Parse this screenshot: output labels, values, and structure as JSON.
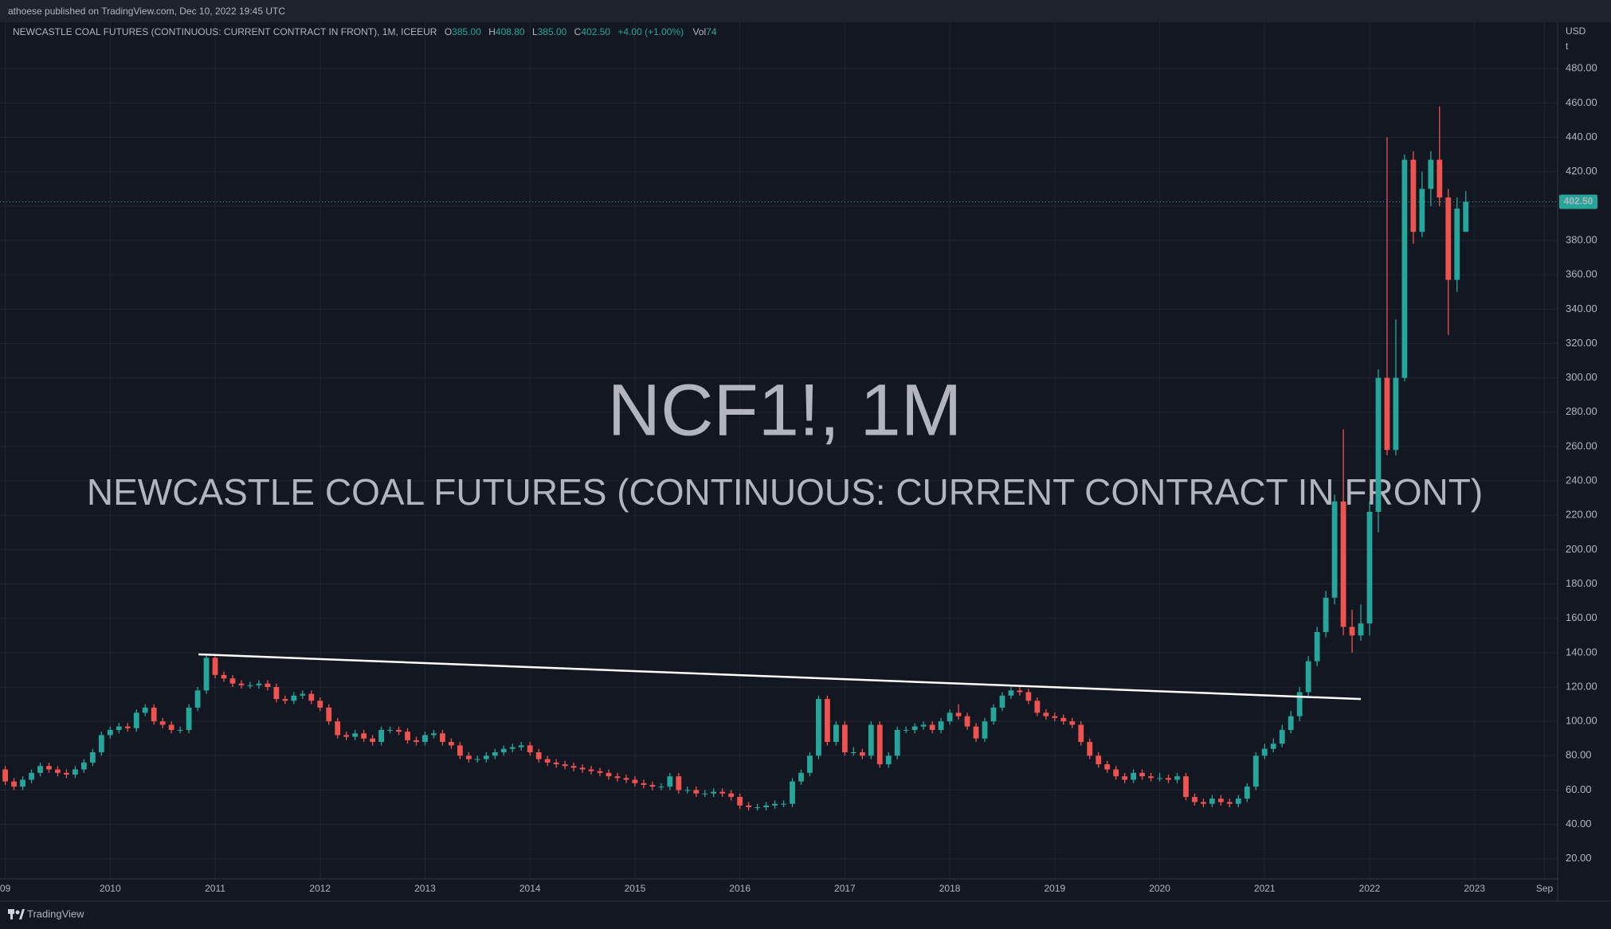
{
  "published": "athoese published on TradingView.com, Dec 10, 2022 19:45 UTC",
  "footer": "TradingView",
  "legend": {
    "title": "NEWCASTLE COAL FUTURES (CONTINUOUS: CURRENT CONTRACT IN FRONT), 1M, ICEEUR",
    "items": [
      {
        "key": "O",
        "text": "385.00"
      },
      {
        "key": "H",
        "text": "408.80"
      },
      {
        "key": "L",
        "text": "385.00"
      },
      {
        "key": "C",
        "text": "402.50"
      }
    ],
    "change": "+4.00 (+1.00%)",
    "volume_key": "Vol",
    "volume": "74"
  },
  "chart_data": {
    "type": "candlestick",
    "watermark": "NCF1!, 1M",
    "watermark_subtitle": "NEWCASTLE COAL FUTURES (CONTINUOUS: CURRENT CONTRACT IN FRONT)",
    "currency": "USD",
    "unit": "t",
    "last_price_label": "402.50",
    "up_color": "#26a69a",
    "down_color": "#ef5350",
    "grid": true,
    "xlim": [
      -0.6,
      177.5
    ],
    "xticks": [
      {
        "value": 0,
        "label": "09"
      },
      {
        "value": 12,
        "label": "2010"
      },
      {
        "value": 24,
        "label": "2011"
      },
      {
        "value": 36,
        "label": "2012"
      },
      {
        "value": 48,
        "label": "2013"
      },
      {
        "value": 60,
        "label": "2014"
      },
      {
        "value": 72,
        "label": "2015"
      },
      {
        "value": 84,
        "label": "2016"
      },
      {
        "value": 96,
        "label": "2017"
      },
      {
        "value": 108,
        "label": "2018"
      },
      {
        "value": 120,
        "label": "2019"
      },
      {
        "value": 132,
        "label": "2020"
      },
      {
        "value": 144,
        "label": "2021"
      },
      {
        "value": 156,
        "label": "2022"
      },
      {
        "value": 168,
        "label": "2023"
      },
      {
        "value": 176,
        "label": "Sep"
      }
    ],
    "ylim": [
      8.3,
      507
    ],
    "yticks": [
      {
        "value": 20,
        "label": "20.00"
      },
      {
        "value": 40,
        "label": "40.00"
      },
      {
        "value": 60,
        "label": "60.00"
      },
      {
        "value": 80,
        "label": "80.00"
      },
      {
        "value": 100,
        "label": "100.00"
      },
      {
        "value": 120,
        "label": "120.00"
      },
      {
        "value": 140,
        "label": "140.00"
      },
      {
        "value": 160,
        "label": "160.00"
      },
      {
        "value": 180,
        "label": "180.00"
      },
      {
        "value": 200,
        "label": "200.00"
      },
      {
        "value": 220,
        "label": "220.00"
      },
      {
        "value": 240,
        "label": "240.00"
      },
      {
        "value": 260,
        "label": "260.00"
      },
      {
        "value": 280,
        "label": "280.00"
      },
      {
        "value": 300,
        "label": "300.00"
      },
      {
        "value": 320,
        "label": "320.00"
      },
      {
        "value": 340,
        "label": "340.00"
      },
      {
        "value": 360,
        "label": "360.00"
      },
      {
        "value": 380,
        "label": "380.00"
      },
      {
        "value": 400,
        "label": "400.00"
      },
      {
        "value": 420,
        "label": "420.00"
      },
      {
        "value": 440,
        "label": "440.00"
      },
      {
        "value": 460,
        "label": "460.00"
      },
      {
        "value": 480,
        "label": "480.00"
      }
    ],
    "trend_line": {
      "x": [
        22.1,
        155
      ],
      "y": [
        139,
        113
      ]
    },
    "open": [
      72,
      65,
      62,
      66,
      70,
      74,
      72,
      70,
      69,
      72,
      76,
      82,
      92,
      95,
      97,
      96,
      105,
      108,
      100,
      98,
      95,
      95,
      108,
      118,
      137,
      127,
      125,
      122,
      121,
      121,
      122,
      120,
      113,
      112,
      115,
      116,
      112,
      108,
      100,
      92,
      91,
      93,
      90,
      88,
      95,
      95,
      94,
      89,
      88,
      92,
      93,
      88,
      86,
      80,
      78,
      78,
      80,
      82,
      84,
      85,
      86,
      82,
      78,
      76,
      75,
      74,
      73,
      72,
      71,
      70,
      68,
      67,
      66,
      64,
      63,
      62,
      62,
      68,
      60,
      60,
      58,
      58,
      59,
      58,
      56,
      51,
      50,
      50,
      51,
      52,
      52,
      65,
      70,
      80,
      113,
      88,
      98,
      82,
      82,
      80,
      98,
      75,
      80,
      95,
      95,
      97,
      98,
      95,
      100,
      105,
      103,
      97,
      90,
      100,
      108,
      115,
      118,
      117,
      112,
      105,
      103,
      102,
      100,
      98,
      88,
      80,
      75,
      72,
      68,
      66,
      70,
      68,
      67,
      67,
      66,
      68,
      56,
      53,
      52,
      55,
      53,
      52,
      55,
      62,
      80,
      84,
      87,
      95,
      103,
      117,
      135,
      152,
      172,
      228,
      155,
      150,
      157,
      222,
      300,
      258,
      300,
      427,
      385,
      410,
      427,
      405,
      357,
      385
    ],
    "high": [
      74,
      67,
      68,
      72,
      76,
      76,
      74,
      72,
      74,
      78,
      84,
      94,
      97,
      99,
      99,
      107,
      110,
      110,
      102,
      100,
      97,
      110,
      120,
      139,
      139,
      129,
      127,
      124,
      123,
      124,
      124,
      122,
      115,
      117,
      118,
      118,
      114,
      110,
      102,
      94,
      95,
      95,
      92,
      97,
      97,
      97,
      96,
      91,
      94,
      95,
      95,
      90,
      88,
      82,
      80,
      82,
      84,
      86,
      87,
      88,
      88,
      84,
      80,
      78,
      77,
      76,
      75,
      74,
      73,
      72,
      70,
      69,
      68,
      66,
      65,
      64,
      70,
      70,
      62,
      62,
      60,
      61,
      61,
      60,
      58,
      53,
      52,
      53,
      54,
      54,
      67,
      72,
      82,
      115,
      115,
      100,
      100,
      85,
      84,
      100,
      100,
      82,
      97,
      97,
      99,
      100,
      100,
      102,
      107,
      110,
      105,
      99,
      102,
      110,
      117,
      120,
      120,
      119,
      114,
      107,
      105,
      104,
      102,
      100,
      90,
      82,
      77,
      74,
      70,
      72,
      72,
      70,
      70,
      69,
      70,
      70,
      58,
      55,
      57,
      57,
      55,
      57,
      64,
      82,
      87,
      90,
      98,
      106,
      120,
      138,
      155,
      176,
      232,
      270,
      165,
      168,
      228,
      305,
      440,
      334,
      430,
      432,
      420,
      432,
      458,
      410,
      405,
      408.8
    ],
    "low": [
      63,
      60,
      60,
      64,
      68,
      70,
      68,
      67,
      67,
      70,
      74,
      80,
      90,
      93,
      94,
      94,
      103,
      98,
      96,
      93,
      93,
      93,
      106,
      116,
      125,
      123,
      120,
      119,
      119,
      119,
      118,
      111,
      110,
      110,
      113,
      110,
      106,
      98,
      90,
      89,
      89,
      88,
      86,
      86,
      93,
      92,
      87,
      86,
      86,
      90,
      86,
      84,
      78,
      76,
      76,
      76,
      78,
      80,
      82,
      83,
      80,
      76,
      74,
      73,
      72,
      71,
      70,
      69,
      68,
      66,
      65,
      64,
      62,
      61,
      60,
      60,
      60,
      58,
      58,
      56,
      56,
      56,
      56,
      54,
      49,
      48,
      48,
      48,
      49,
      50,
      50,
      63,
      68,
      78,
      86,
      86,
      80,
      80,
      78,
      78,
      73,
      73,
      78,
      93,
      93,
      95,
      93,
      93,
      98,
      101,
      95,
      88,
      88,
      98,
      106,
      113,
      115,
      110,
      103,
      101,
      100,
      98,
      96,
      86,
      78,
      73,
      70,
      66,
      64,
      64,
      66,
      65,
      65,
      64,
      64,
      54,
      51,
      50,
      50,
      51,
      50,
      50,
      53,
      60,
      78,
      82,
      85,
      93,
      100,
      114,
      132,
      149,
      168,
      150,
      140,
      147,
      150,
      210,
      255,
      255,
      298,
      378,
      382,
      400,
      400,
      325,
      350,
      385
    ],
    "close": [
      65,
      62,
      66,
      70,
      74,
      72,
      70,
      69,
      72,
      76,
      82,
      92,
      95,
      97,
      96,
      105,
      108,
      100,
      98,
      95,
      95,
      108,
      118,
      137,
      127,
      125,
      122,
      121,
      121,
      122,
      120,
      113,
      112,
      115,
      116,
      112,
      108,
      100,
      92,
      91,
      93,
      90,
      88,
      95,
      95,
      94,
      89,
      88,
      92,
      93,
      88,
      86,
      80,
      78,
      78,
      80,
      82,
      84,
      85,
      86,
      82,
      78,
      76,
      75,
      74,
      73,
      72,
      71,
      70,
      68,
      67,
      66,
      64,
      63,
      62,
      62,
      68,
      60,
      60,
      58,
      58,
      59,
      58,
      56,
      51,
      50,
      50,
      51,
      52,
      52,
      65,
      70,
      80,
      113,
      88,
      98,
      82,
      82,
      80,
      98,
      75,
      80,
      95,
      95,
      97,
      98,
      95,
      100,
      105,
      103,
      97,
      90,
      100,
      108,
      115,
      118,
      117,
      112,
      105,
      103,
      102,
      100,
      98,
      88,
      80,
      75,
      72,
      68,
      66,
      70,
      68,
      67,
      67,
      66,
      68,
      56,
      53,
      52,
      55,
      53,
      52,
      55,
      62,
      80,
      84,
      87,
      95,
      103,
      117,
      135,
      152,
      172,
      228,
      155,
      150,
      157,
      222,
      300,
      258,
      300,
      427,
      385,
      410,
      427,
      405,
      357,
      398.5,
      402.5
    ]
  }
}
